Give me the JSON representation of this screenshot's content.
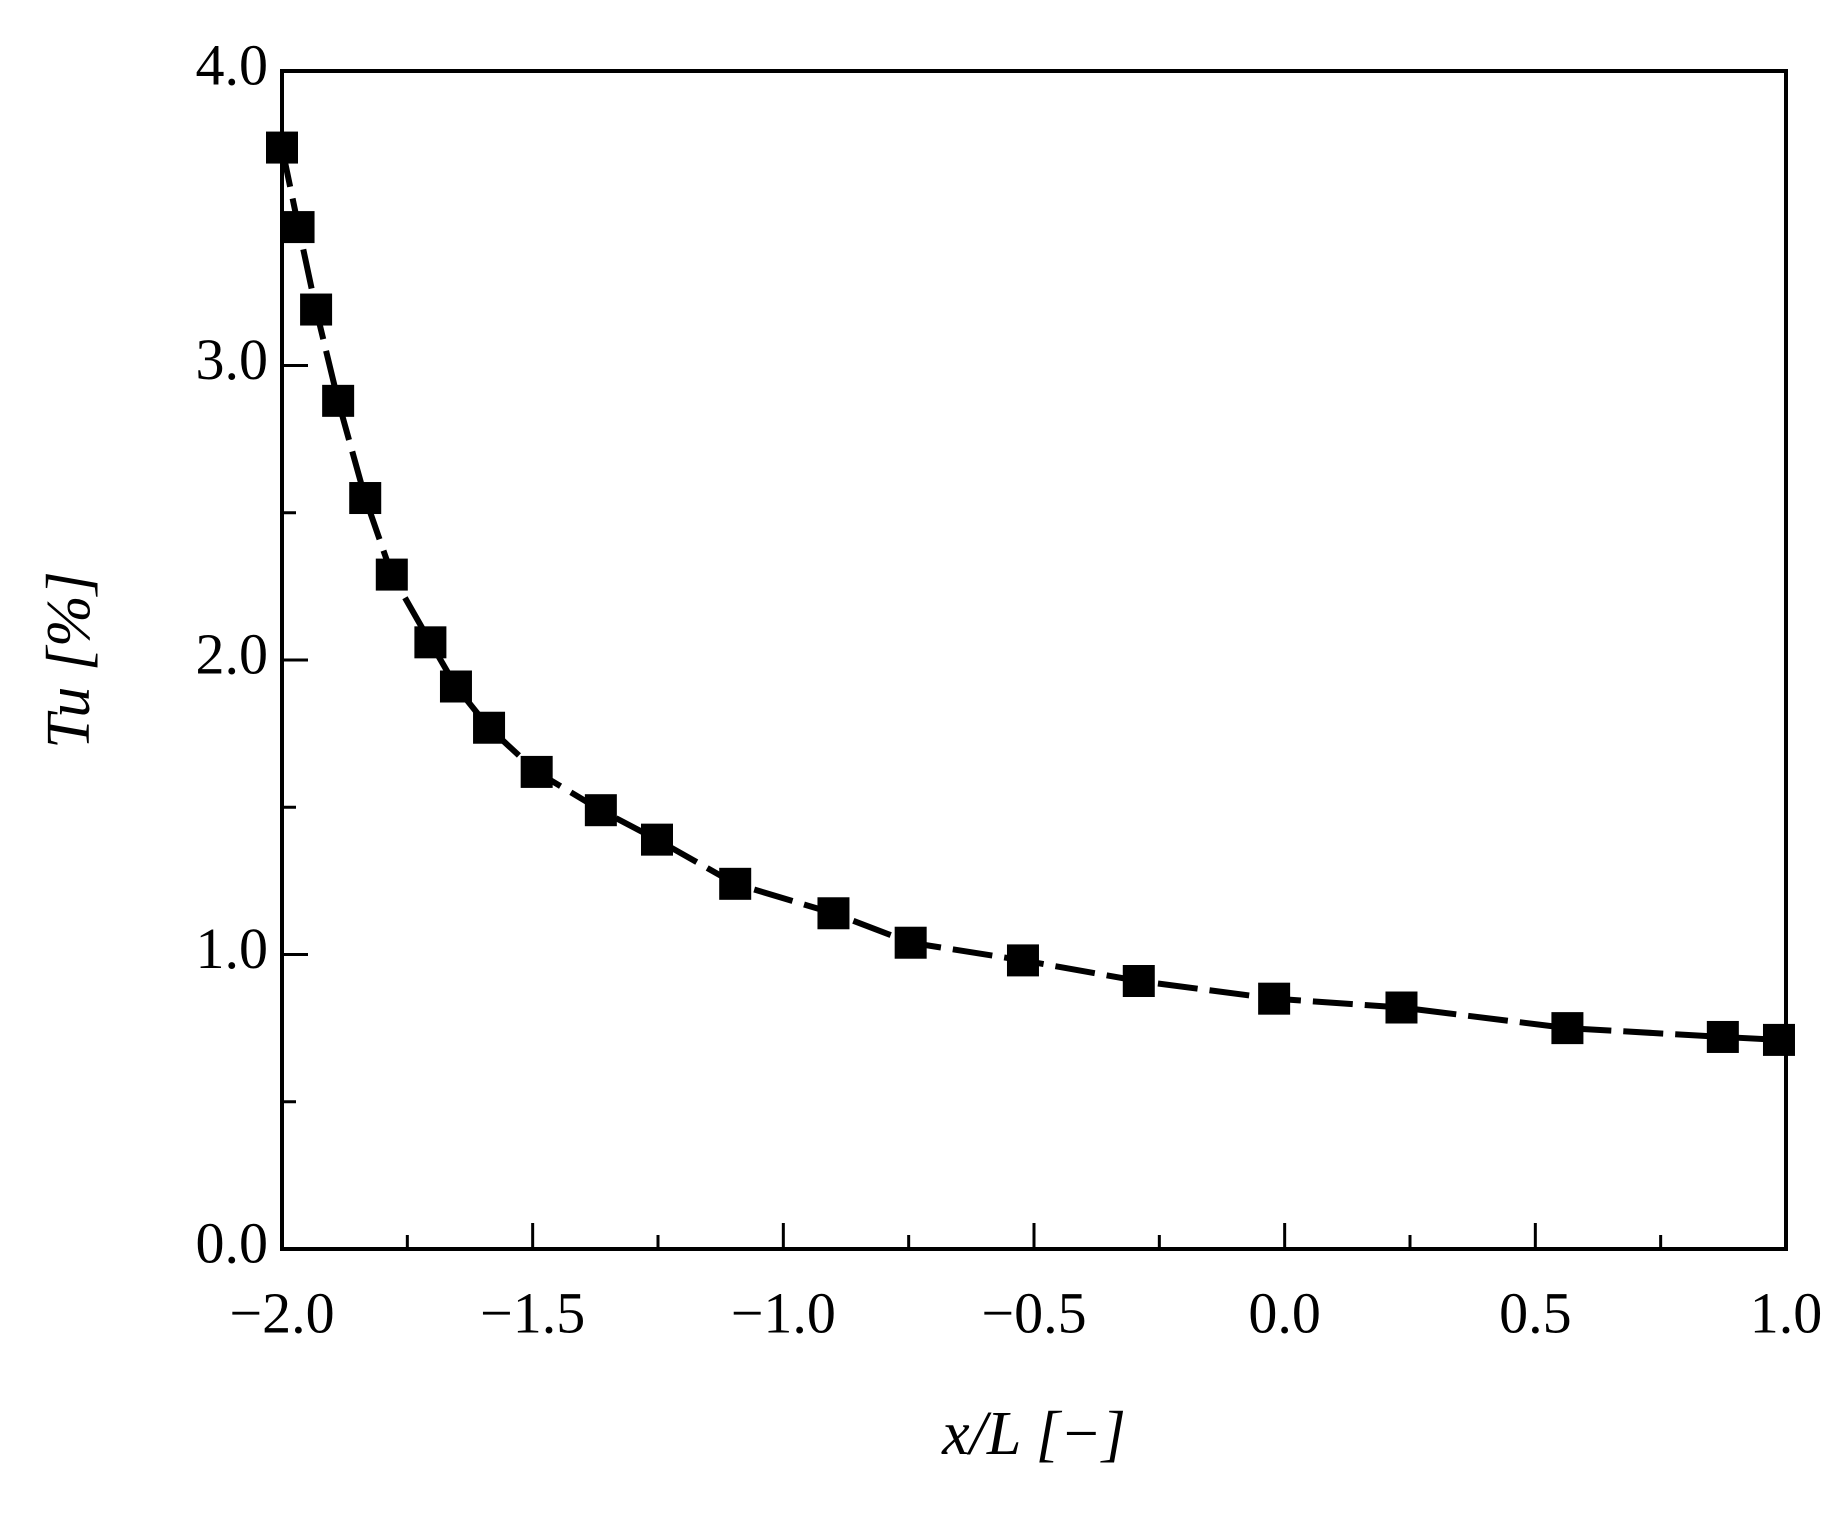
{
  "chart_data": {
    "type": "line",
    "x_label": "x/L  [−]",
    "y_label": "Tu [%]",
    "x": [
      -2.0,
      -1.967,
      -1.932,
      -1.888,
      -1.834,
      -1.781,
      -1.704,
      -1.653,
      -1.587,
      -1.492,
      -1.364,
      -1.252,
      -1.096,
      -0.9,
      -0.746,
      -0.522,
      -0.291,
      -0.021,
      0.233,
      0.564,
      0.874,
      0.986
    ],
    "series": [
      {
        "color": "#000000",
        "values": [
          3.74,
          3.47,
          3.19,
          2.88,
          2.55,
          2.29,
          2.06,
          1.91,
          1.77,
          1.62,
          1.49,
          1.39,
          1.24,
          1.14,
          1.04,
          0.98,
          0.91,
          0.85,
          0.82,
          0.75,
          0.72,
          0.71
        ]
      }
    ],
    "xlim": [
      -2.0,
      1.0
    ],
    "ylim": [
      0,
      4.0
    ],
    "xticks": [
      {
        "value": -2.0,
        "label": "−2.0"
      },
      {
        "value": -1.5,
        "label": "−1.5"
      },
      {
        "value": -1.0,
        "label": "−1.0"
      },
      {
        "value": -0.5,
        "label": "−0.5"
      },
      {
        "value": 0,
        "label": "0.0"
      },
      {
        "value": 0.5,
        "label": "0.5"
      },
      {
        "value": 1.0,
        "label": "1.0"
      }
    ],
    "yticks": [
      {
        "value": 0,
        "label": "0.0"
      },
      {
        "value": 1.0,
        "label": "1.0"
      },
      {
        "value": 2.0,
        "label": "2.0"
      },
      {
        "value": 3.0,
        "label": "3.0"
      },
      {
        "value": 4.0,
        "label": "4.0"
      }
    ],
    "xticks_minor": [
      -1.75,
      -1.25,
      -0.75,
      -0.25,
      0.25,
      0.75
    ],
    "yticks_minor": [
      0.5,
      1.5,
      2.5,
      3.5
    ],
    "marker": "square",
    "line_style": "dashed",
    "grid": false
  }
}
